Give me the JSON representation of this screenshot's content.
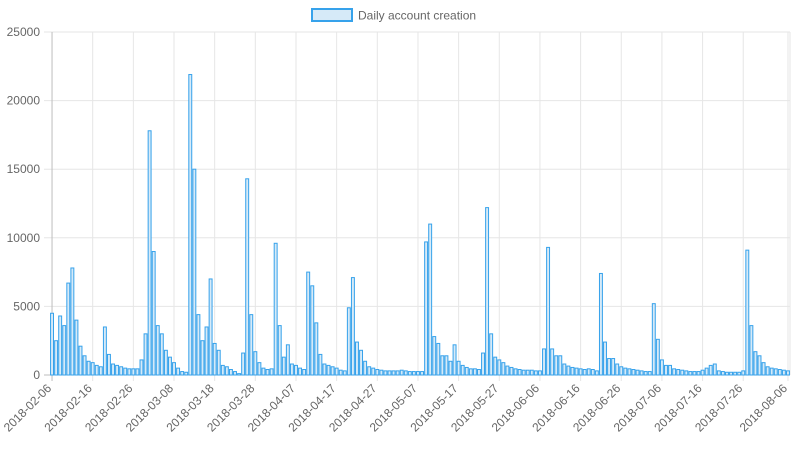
{
  "chart_data": {
    "type": "bar",
    "title": "",
    "xlabel": "",
    "ylabel": "",
    "legend": {
      "position": "top",
      "entries": [
        "Daily account creation"
      ]
    },
    "grid": true,
    "ylim": [
      0,
      25000
    ],
    "y_ticks": [
      "0",
      "5000",
      "10000",
      "15000",
      "20000",
      "25000"
    ],
    "x_start": "2018-02-06",
    "x_end": "2018-08-06",
    "x_ticks": [
      "2018-02-06",
      "2018-02-16",
      "2018-02-26",
      "2018-03-08",
      "2018-03-18",
      "2018-03-28",
      "2018-04-07",
      "2018-04-17",
      "2018-04-27",
      "2018-05-07",
      "2018-05-17",
      "2018-05-27",
      "2018-06-06",
      "2018-06-16",
      "2018-06-26",
      "2018-07-06",
      "2018-07-16",
      "2018-07-26",
      "2018-08-06"
    ],
    "series": [
      {
        "name": "Daily account creation",
        "fill": "#d6eaf8",
        "stroke": "#36a2eb",
        "values": [
          4500,
          2500,
          4300,
          3600,
          6700,
          7800,
          4000,
          2100,
          1400,
          1000,
          900,
          700,
          600,
          3500,
          1500,
          800,
          700,
          600,
          500,
          450,
          450,
          450,
          1100,
          3000,
          17800,
          9000,
          3600,
          3000,
          1800,
          1300,
          900,
          500,
          250,
          200,
          21900,
          15000,
          4400,
          2500,
          3500,
          7000,
          2300,
          1800,
          700,
          600,
          400,
          250,
          100,
          1600,
          14300,
          4400,
          1700,
          900,
          500,
          400,
          450,
          9600,
          3600,
          1300,
          2200,
          800,
          700,
          500,
          400,
          7500,
          6500,
          3800,
          1500,
          800,
          700,
          600,
          500,
          350,
          300,
          4900,
          7100,
          2400,
          1800,
          1000,
          600,
          500,
          400,
          350,
          300,
          300,
          300,
          300,
          350,
          300,
          250,
          250,
          250,
          250,
          9700,
          11000,
          2800,
          2300,
          1400,
          1400,
          1000,
          2200,
          1000,
          700,
          550,
          450,
          450,
          400,
          1600,
          12200,
          3000,
          1300,
          1100,
          900,
          650,
          550,
          450,
          400,
          350,
          350,
          350,
          300,
          300,
          1900,
          9300,
          1900,
          1400,
          1400,
          800,
          650,
          550,
          500,
          450,
          400,
          450,
          400,
          300,
          7400,
          2400,
          1200,
          1200,
          800,
          600,
          500,
          450,
          400,
          350,
          300,
          250,
          250,
          5200,
          2600,
          1100,
          700,
          700,
          450,
          400,
          350,
          300,
          250,
          250,
          250,
          350,
          500,
          700,
          800,
          300,
          250,
          200,
          200,
          200,
          200,
          300,
          9100,
          3600,
          1700,
          1400,
          900,
          600,
          500,
          450,
          400,
          350,
          300
        ]
      }
    ]
  }
}
